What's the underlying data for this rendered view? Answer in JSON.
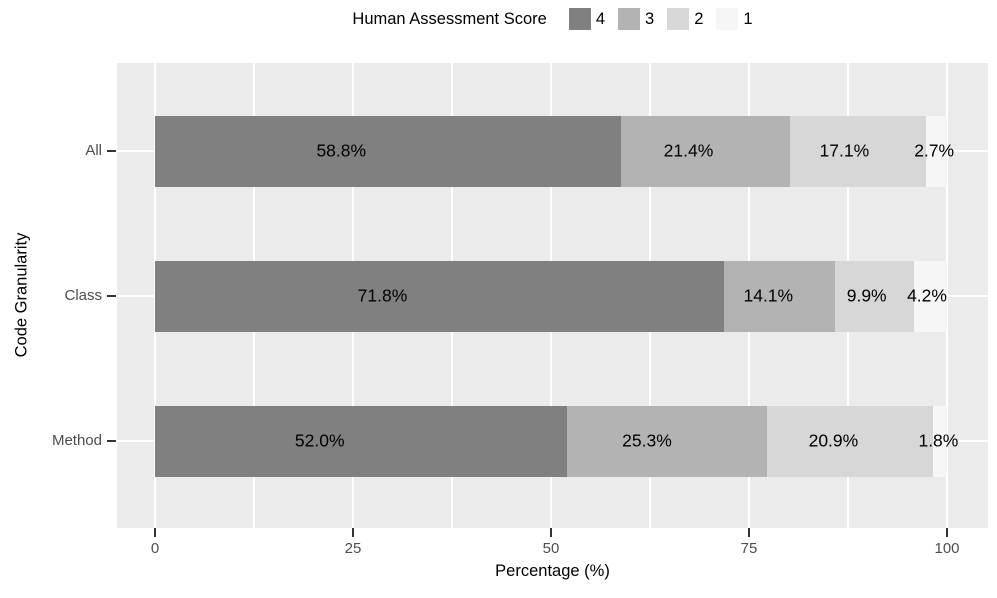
{
  "chart_data": {
    "type": "bar",
    "orientation": "horizontal",
    "stacked": true,
    "legend_title": "Human Assessment Score",
    "legend_position": "top",
    "categories": [
      "All",
      "Class",
      "Method"
    ],
    "series": [
      {
        "name": "4",
        "color": "#808080",
        "values": [
          58.8,
          71.8,
          52.0
        ]
      },
      {
        "name": "3",
        "color": "#B3B3B3",
        "values": [
          21.4,
          14.1,
          25.3
        ]
      },
      {
        "name": "2",
        "color": "#D7D7D7",
        "values": [
          17.1,
          9.9,
          20.9
        ]
      },
      {
        "name": "1",
        "color": "#F6F6F6",
        "values": [
          2.7,
          4.2,
          1.8
        ]
      }
    ],
    "bar_labels": [
      [
        "58.8%",
        "21.4%",
        "17.1%",
        "2.7%"
      ],
      [
        "71.8%",
        "14.1%",
        "9.9%",
        "4.2%"
      ],
      [
        "52.0%",
        "25.3%",
        "20.9%",
        "1.8%"
      ]
    ],
    "xlabel": "Percentage (%)",
    "ylabel": "Code Granularity",
    "x_ticks": [
      "0",
      "25",
      "50",
      "75",
      "100"
    ],
    "x_tick_values": [
      0,
      25,
      50,
      75,
      100
    ],
    "x_minor_tick_values": [
      12.5,
      37.5,
      62.5,
      87.5
    ],
    "xlim": [
      0,
      100
    ],
    "grid": true,
    "colors": {
      "panel_background": "#EBEBEB",
      "gridline": "#FFFFFF",
      "axis_text": "#4D4D4D",
      "axis_title": "#000000",
      "bar_label_text": "#000000",
      "tick_mark": "#333333"
    }
  }
}
